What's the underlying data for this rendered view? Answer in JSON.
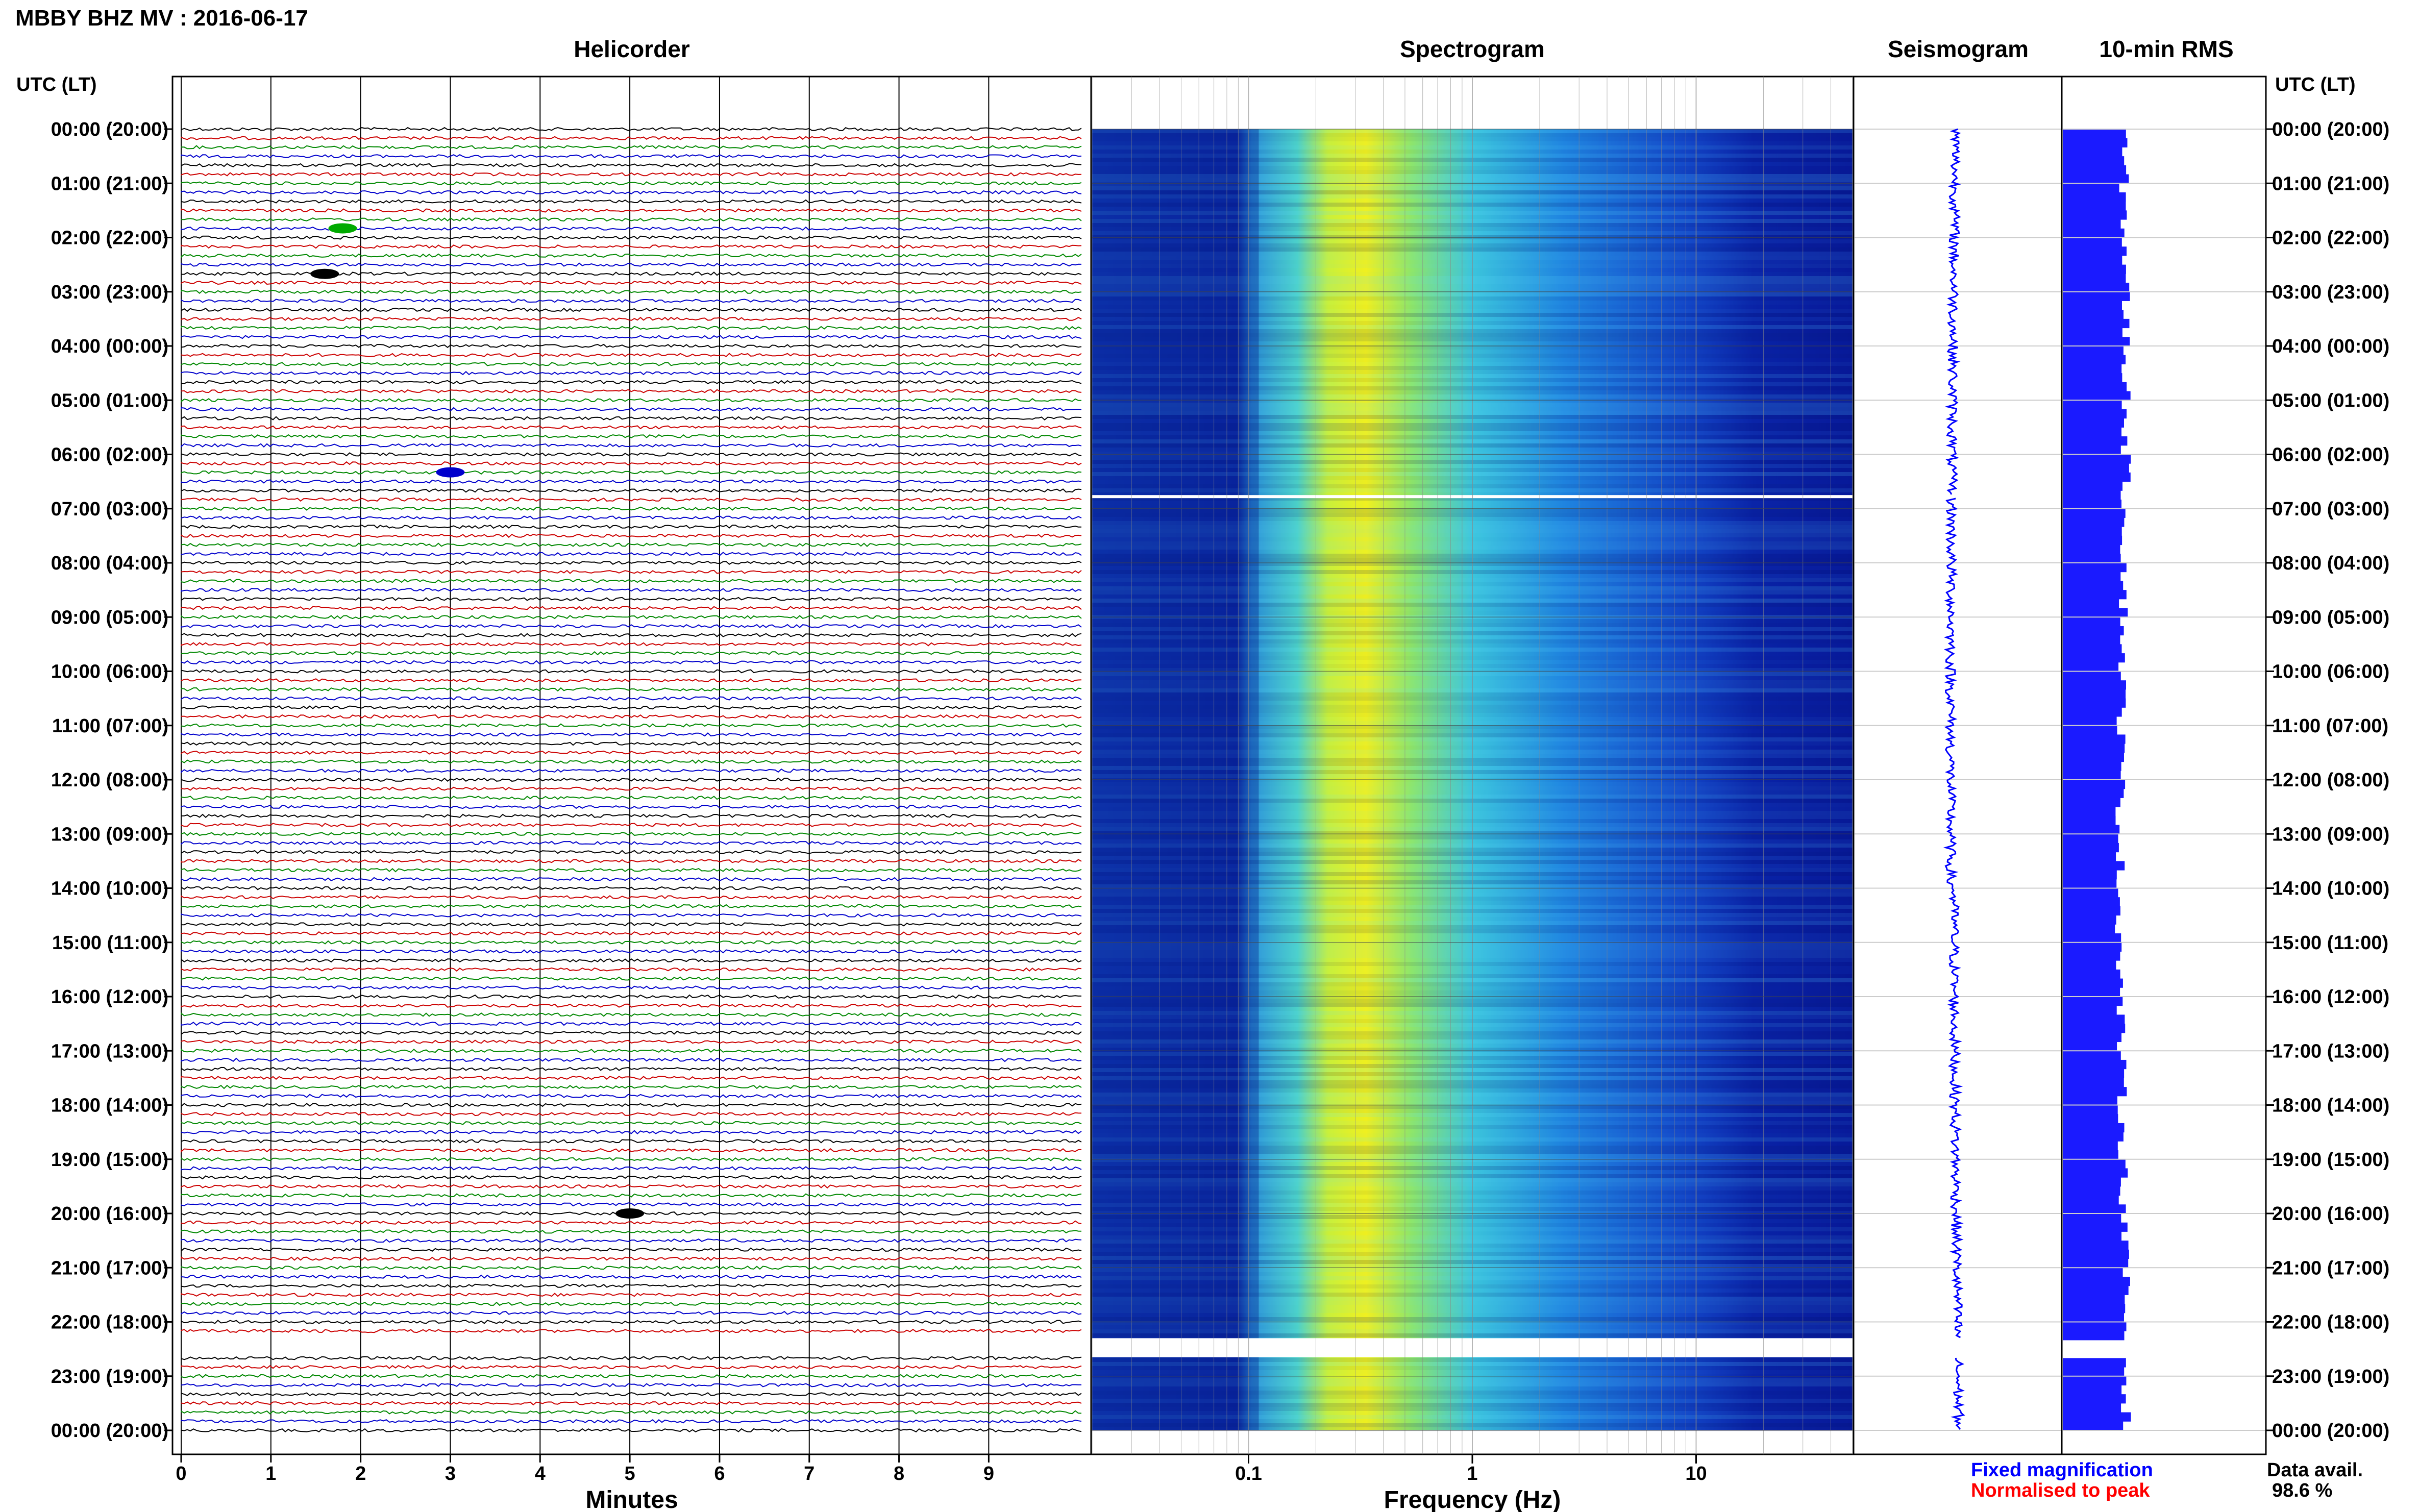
{
  "header": {
    "title": "MBBY BHZ MV : 2016-06-17"
  },
  "panels": {
    "helicorder": "Helicorder",
    "spectrogram": "Spectrogram",
    "seismogram": "Seismogram",
    "rms": "10-min RMS"
  },
  "axis": {
    "time_label_left": "UTC (LT)",
    "time_label_right": "UTC (LT)",
    "minutes_label": "Minutes",
    "frequency_label": "Frequency (Hz)"
  },
  "legend": {
    "fixed": "Fixed magnification",
    "normalised": "Normalised to peak",
    "fixed_color": "#0000ff",
    "normalised_color": "#ff0000"
  },
  "availability": {
    "label": "Data avail.",
    "value": "98.6 %"
  },
  "colors": {
    "trace_cycle": [
      "#000000",
      "#cc0000",
      "#008800",
      "#0000cc"
    ],
    "rms_bar": "#1a1aff",
    "seismogram_trace": "#0000ff",
    "spectrogram_low": "#0a1a9e",
    "spectrogram_high": "#f0f020"
  },
  "chart_data": {
    "type": "heatmap",
    "time_ticks": [
      "00:00 (20:00)",
      "01:00 (21:00)",
      "02:00 (22:00)",
      "03:00 (23:00)",
      "04:00 (00:00)",
      "05:00 (01:00)",
      "06:00 (02:00)",
      "07:00 (03:00)",
      "08:00 (04:00)",
      "09:00 (05:00)",
      "10:00 (06:00)",
      "11:00 (07:00)",
      "12:00 (08:00)",
      "13:00 (09:00)",
      "14:00 (10:00)",
      "15:00 (11:00)",
      "16:00 (12:00)",
      "17:00 (13:00)",
      "18:00 (14:00)",
      "19:00 (15:00)",
      "20:00 (16:00)",
      "21:00 (17:00)",
      "22:00 (18:00)",
      "23:00 (19:00)",
      "00:00 (20:00)"
    ],
    "minutes_ticks": [
      "0",
      "1",
      "2",
      "3",
      "4",
      "5",
      "6",
      "7",
      "8",
      "9"
    ],
    "frequency_ticks": [
      "0.1",
      "1",
      "10"
    ],
    "frequency_range_hz": [
      0.02,
      50
    ],
    "frequency_scale": "log",
    "helicorder_lines_per_hour": 6,
    "data_gaps_utc_hours": [
      [
        6.75,
        6.8
      ],
      [
        22.3,
        22.65
      ]
    ],
    "events": [
      {
        "utc_hour": 1.83,
        "minute": 1.8,
        "color": "green"
      },
      {
        "utc_hour": 2.67,
        "minute": 1.6,
        "color": "black"
      },
      {
        "utc_hour": 6.33,
        "minute": 3.0,
        "color": "blue"
      },
      {
        "utc_hour": 20.0,
        "minute": 5.0,
        "color": "black"
      }
    ],
    "rms_grid": "on"
  }
}
